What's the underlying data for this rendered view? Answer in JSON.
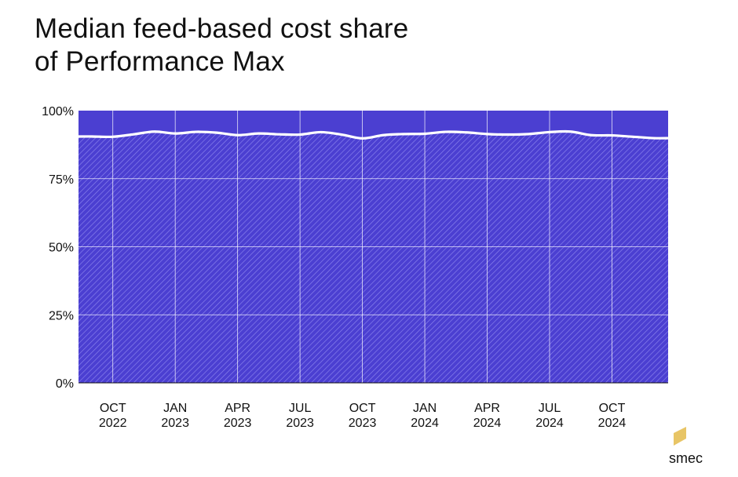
{
  "title": {
    "line1": "Median feed-based cost share",
    "line2": "of Performance Max"
  },
  "brand": {
    "name": "smec",
    "mark_color": "#E8C566"
  },
  "colors": {
    "fill": "#4B3FD1",
    "hatch": "#8C84EE",
    "line": "#FFFFFF",
    "grid": "#FFFFFF",
    "text": "#111111"
  },
  "chart_data": {
    "type": "area",
    "title": "Median feed-based cost share of Performance Max",
    "xlabel": "",
    "ylabel": "",
    "ylim": [
      0,
      100
    ],
    "yticks": [
      {
        "value": 0,
        "label": "0%"
      },
      {
        "value": 25,
        "label": "25%"
      },
      {
        "value": 50,
        "label": "50%"
      },
      {
        "value": 75,
        "label": "75%"
      },
      {
        "value": 100,
        "label": "100%"
      }
    ],
    "x_tick_labels": [
      {
        "month": "2022-10",
        "line1": "OCT",
        "line2": "2022"
      },
      {
        "month": "2023-01",
        "line1": "JAN",
        "line2": "2023"
      },
      {
        "month": "2023-04",
        "line1": "APR",
        "line2": "2023"
      },
      {
        "month": "2023-07",
        "line1": "JUL",
        "line2": "2023"
      },
      {
        "month": "2023-10",
        "line1": "OCT",
        "line2": "2023"
      },
      {
        "month": "2024-01",
        "line1": "JAN",
        "line2": "2024"
      },
      {
        "month": "2024-04",
        "line1": "APR",
        "line2": "2024"
      },
      {
        "month": "2024-07",
        "line1": "JUL",
        "line2": "2024"
      },
      {
        "month": "2024-10",
        "line1": "OCT",
        "line2": "2024"
      }
    ],
    "x": [
      "2022-09",
      "2022-10",
      "2022-11",
      "2022-12",
      "2023-01",
      "2023-02",
      "2023-03",
      "2023-04",
      "2023-05",
      "2023-06",
      "2023-07",
      "2023-08",
      "2023-09",
      "2023-10",
      "2023-11",
      "2023-12",
      "2024-01",
      "2024-02",
      "2024-03",
      "2024-04",
      "2024-05",
      "2024-06",
      "2024-07",
      "2024-08",
      "2024-09",
      "2024-10",
      "2024-11",
      "2024-12"
    ],
    "series": [
      {
        "values": [
          90.5,
          90.4,
          91.3,
          92.3,
          91.6,
          92.2,
          91.9,
          91.0,
          91.6,
          91.3,
          91.2,
          92.1,
          91.2,
          89.8,
          91.0,
          91.4,
          91.5,
          92.2,
          92.0,
          91.4,
          91.2,
          91.4,
          92.1,
          92.3,
          91.0,
          90.9,
          90.4,
          89.9
        ]
      }
    ],
    "grid": true,
    "legend": "none"
  }
}
